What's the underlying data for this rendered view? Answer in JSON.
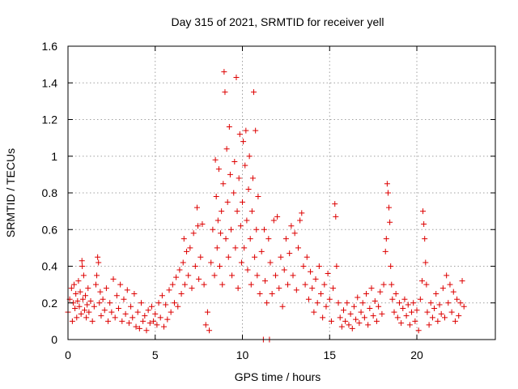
{
  "chart_data": {
    "type": "scatter",
    "title": "Day 315 of 2021, SRMTID for receiver yell",
    "xlabel": "GPS time / hours",
    "ylabel": "SRMTID / TECUs",
    "xlim": [
      0,
      24.5
    ],
    "ylim": [
      0,
      1.6
    ],
    "xticks": [
      0,
      5,
      10,
      15,
      20
    ],
    "xtick_labels": [
      "0",
      "5",
      "10",
      "15",
      "20"
    ],
    "yticks": [
      0,
      0.2,
      0.4,
      0.6,
      0.8,
      1.0,
      1.2,
      1.4,
      1.6
    ],
    "ytick_labels": [
      "0",
      "0.2",
      "0.4",
      "0.6",
      "0.8",
      "1",
      "1.2",
      "1.4",
      "1.6"
    ],
    "grid": true,
    "marker": "+",
    "color": "#dd0000",
    "series": [
      {
        "name": "SRMTID",
        "points": [
          [
            0.0,
            0.15
          ],
          [
            0.1,
            0.22
          ],
          [
            0.2,
            0.28
          ],
          [
            0.25,
            0.1
          ],
          [
            0.3,
            0.2
          ],
          [
            0.35,
            0.3
          ],
          [
            0.4,
            0.17
          ],
          [
            0.45,
            0.25
          ],
          [
            0.5,
            0.12
          ],
          [
            0.55,
            0.21
          ],
          [
            0.6,
            0.32
          ],
          [
            0.65,
            0.18
          ],
          [
            0.7,
            0.26
          ],
          [
            0.75,
            0.14
          ],
          [
            0.8,
            0.43
          ],
          [
            0.82,
            0.4
          ],
          [
            0.85,
            0.22
          ],
          [
            0.9,
            0.35
          ],
          [
            0.95,
            0.16
          ],
          [
            1.0,
            0.24
          ],
          [
            1.05,
            0.12
          ],
          [
            1.1,
            0.19
          ],
          [
            1.15,
            0.28
          ],
          [
            1.2,
            0.15
          ],
          [
            1.3,
            0.21
          ],
          [
            1.4,
            0.1
          ],
          [
            1.5,
            0.18
          ],
          [
            1.6,
            0.3
          ],
          [
            1.65,
            0.35
          ],
          [
            1.7,
            0.45
          ],
          [
            1.75,
            0.42
          ],
          [
            1.8,
            0.2
          ],
          [
            1.85,
            0.26
          ],
          [
            1.9,
            0.13
          ],
          [
            2.0,
            0.22
          ],
          [
            2.1,
            0.16
          ],
          [
            2.2,
            0.28
          ],
          [
            2.3,
            0.1
          ],
          [
            2.4,
            0.2
          ],
          [
            2.5,
            0.15
          ],
          [
            2.6,
            0.33
          ],
          [
            2.7,
            0.12
          ],
          [
            2.8,
            0.24
          ],
          [
            2.9,
            0.17
          ],
          [
            3.0,
            0.3
          ],
          [
            3.1,
            0.1
          ],
          [
            3.2,
            0.22
          ],
          [
            3.3,
            0.14
          ],
          [
            3.4,
            0.27
          ],
          [
            3.5,
            0.09
          ],
          [
            3.6,
            0.18
          ],
          [
            3.7,
            0.12
          ],
          [
            3.8,
            0.25
          ],
          [
            3.9,
            0.07
          ],
          [
            4.0,
            0.15
          ],
          [
            4.1,
            0.06
          ],
          [
            4.2,
            0.2
          ],
          [
            4.3,
            0.1
          ],
          [
            4.4,
            0.13
          ],
          [
            4.5,
            0.05
          ],
          [
            4.6,
            0.16
          ],
          [
            4.7,
            0.09
          ],
          [
            4.8,
            0.18
          ],
          [
            4.9,
            0.1
          ],
          [
            5.0,
            0.14
          ],
          [
            5.1,
            0.08
          ],
          [
            5.2,
            0.2
          ],
          [
            5.3,
            0.12
          ],
          [
            5.4,
            0.24
          ],
          [
            5.5,
            0.07
          ],
          [
            5.6,
            0.19
          ],
          [
            5.7,
            0.11
          ],
          [
            5.8,
            0.27
          ],
          [
            5.9,
            0.15
          ],
          [
            6.0,
            0.3
          ],
          [
            6.1,
            0.2
          ],
          [
            6.2,
            0.34
          ],
          [
            6.3,
            0.18
          ],
          [
            6.4,
            0.38
          ],
          [
            6.5,
            0.25
          ],
          [
            6.6,
            0.42
          ],
          [
            6.65,
            0.55
          ],
          [
            6.7,
            0.3
          ],
          [
            6.8,
            0.48
          ],
          [
            6.9,
            0.35
          ],
          [
            7.0,
            0.5
          ],
          [
            7.1,
            0.28
          ],
          [
            7.2,
            0.58
          ],
          [
            7.3,
            0.4
          ],
          [
            7.4,
            0.72
          ],
          [
            7.45,
            0.62
          ],
          [
            7.5,
            0.33
          ],
          [
            7.6,
            0.45
          ],
          [
            7.7,
            0.63
          ],
          [
            7.8,
            0.3
          ],
          [
            7.9,
            0.08
          ],
          [
            8.0,
            0.15
          ],
          [
            8.1,
            0.05
          ],
          [
            8.2,
            0.42
          ],
          [
            8.3,
            0.6
          ],
          [
            8.4,
            0.35
          ],
          [
            8.45,
            0.98
          ],
          [
            8.5,
            0.78
          ],
          [
            8.55,
            0.5
          ],
          [
            8.6,
            0.65
          ],
          [
            8.65,
            0.93
          ],
          [
            8.7,
            0.4
          ],
          [
            8.75,
            0.58
          ],
          [
            8.8,
            0.7
          ],
          [
            8.85,
            0.3
          ],
          [
            8.9,
            0.85
          ],
          [
            8.95,
            1.46
          ],
          [
            9.0,
            1.35
          ],
          [
            9.05,
            0.55
          ],
          [
            9.1,
            1.04
          ],
          [
            9.15,
            0.75
          ],
          [
            9.2,
            0.45
          ],
          [
            9.25,
            1.16
          ],
          [
            9.3,
            0.9
          ],
          [
            9.35,
            0.6
          ],
          [
            9.4,
            0.35
          ],
          [
            9.5,
            0.8
          ],
          [
            9.55,
            0.97
          ],
          [
            9.6,
            0.5
          ],
          [
            9.65,
            1.43
          ],
          [
            9.7,
            0.7
          ],
          [
            9.75,
            0.28
          ],
          [
            9.8,
            0.88
          ],
          [
            9.85,
            1.12
          ],
          [
            9.9,
            0.62
          ],
          [
            9.95,
            0.42
          ],
          [
            10.0,
            0.75
          ],
          [
            10.05,
            1.08
          ],
          [
            10.1,
            0.5
          ],
          [
            10.15,
            0.95
          ],
          [
            10.2,
            1.14
          ],
          [
            10.25,
            0.65
          ],
          [
            10.3,
            0.38
          ],
          [
            10.35,
            0.82
          ],
          [
            10.4,
            1.0
          ],
          [
            10.45,
            0.55
          ],
          [
            10.5,
            0.3
          ],
          [
            10.55,
            0.7
          ],
          [
            10.6,
            0.88
          ],
          [
            10.65,
            1.35
          ],
          [
            10.7,
            0.45
          ],
          [
            10.75,
            1.14
          ],
          [
            10.8,
            0.6
          ],
          [
            10.85,
            0.35
          ],
          [
            10.9,
            0.78
          ],
          [
            11.0,
            0.25
          ],
          [
            11.1,
            0.48
          ],
          [
            11.2,
            0.0
          ],
          [
            11.25,
            0.6
          ],
          [
            11.3,
            0.32
          ],
          [
            11.4,
            0.2
          ],
          [
            11.5,
            0.55
          ],
          [
            11.55,
            0.0
          ],
          [
            11.6,
            0.42
          ],
          [
            11.7,
            0.25
          ],
          [
            11.8,
            0.65
          ],
          [
            11.9,
            0.35
          ],
          [
            12.0,
            0.67
          ],
          [
            12.1,
            0.28
          ],
          [
            12.2,
            0.45
          ],
          [
            12.3,
            0.18
          ],
          [
            12.4,
            0.38
          ],
          [
            12.5,
            0.55
          ],
          [
            12.6,
            0.3
          ],
          [
            12.7,
            0.47
          ],
          [
            12.8,
            0.62
          ],
          [
            12.9,
            0.35
          ],
          [
            13.0,
            0.58
          ],
          [
            13.1,
            0.27
          ],
          [
            13.2,
            0.5
          ],
          [
            13.3,
            0.65
          ],
          [
            13.4,
            0.69
          ],
          [
            13.5,
            0.4
          ],
          [
            13.6,
            0.3
          ],
          [
            13.7,
            0.45
          ],
          [
            13.8,
            0.22
          ],
          [
            13.9,
            0.37
          ],
          [
            14.0,
            0.28
          ],
          [
            14.1,
            0.15
          ],
          [
            14.2,
            0.33
          ],
          [
            14.3,
            0.2
          ],
          [
            14.4,
            0.4
          ],
          [
            14.5,
            0.25
          ],
          [
            14.6,
            0.12
          ],
          [
            14.7,
            0.3
          ],
          [
            14.8,
            0.18
          ],
          [
            14.9,
            0.36
          ],
          [
            15.0,
            0.22
          ],
          [
            15.1,
            0.1
          ],
          [
            15.2,
            0.28
          ],
          [
            15.3,
            0.74
          ],
          [
            15.35,
            0.67
          ],
          [
            15.4,
            0.4
          ],
          [
            15.5,
            0.2
          ],
          [
            15.6,
            0.12
          ],
          [
            15.7,
            0.07
          ],
          [
            15.8,
            0.16
          ],
          [
            15.9,
            0.1
          ],
          [
            16.0,
            0.2
          ],
          [
            16.1,
            0.08
          ],
          [
            16.2,
            0.14
          ],
          [
            16.3,
            0.06
          ],
          [
            16.4,
            0.18
          ],
          [
            16.5,
            0.11
          ],
          [
            16.6,
            0.23
          ],
          [
            16.7,
            0.09
          ],
          [
            16.8,
            0.15
          ],
          [
            16.9,
            0.2
          ],
          [
            17.0,
            0.12
          ],
          [
            17.1,
            0.25
          ],
          [
            17.2,
            0.08
          ],
          [
            17.3,
            0.17
          ],
          [
            17.4,
            0.28
          ],
          [
            17.5,
            0.13
          ],
          [
            17.6,
            0.21
          ],
          [
            17.7,
            0.1
          ],
          [
            17.8,
            0.18
          ],
          [
            17.9,
            0.26
          ],
          [
            18.0,
            0.14
          ],
          [
            18.1,
            0.3
          ],
          [
            18.2,
            0.48
          ],
          [
            18.25,
            0.55
          ],
          [
            18.3,
            0.85
          ],
          [
            18.35,
            0.8
          ],
          [
            18.4,
            0.72
          ],
          [
            18.45,
            0.64
          ],
          [
            18.5,
            0.4
          ],
          [
            18.55,
            0.3
          ],
          [
            18.6,
            0.22
          ],
          [
            18.7,
            0.15
          ],
          [
            18.8,
            0.25
          ],
          [
            18.9,
            0.12
          ],
          [
            19.0,
            0.2
          ],
          [
            19.1,
            0.09
          ],
          [
            19.2,
            0.17
          ],
          [
            19.3,
            0.22
          ],
          [
            19.4,
            0.13
          ],
          [
            19.5,
            0.19
          ],
          [
            19.6,
            0.08
          ],
          [
            19.7,
            0.15
          ],
          [
            19.8,
            0.2
          ],
          [
            19.9,
            0.1
          ],
          [
            20.0,
            0.16
          ],
          [
            20.1,
            0.05
          ],
          [
            20.2,
            0.22
          ],
          [
            20.3,
            0.32
          ],
          [
            20.35,
            0.7
          ],
          [
            20.4,
            0.63
          ],
          [
            20.45,
            0.55
          ],
          [
            20.5,
            0.42
          ],
          [
            20.55,
            0.3
          ],
          [
            20.6,
            0.15
          ],
          [
            20.7,
            0.08
          ],
          [
            20.8,
            0.2
          ],
          [
            20.9,
            0.12
          ],
          [
            21.0,
            0.17
          ],
          [
            21.1,
            0.25
          ],
          [
            21.2,
            0.1
          ],
          [
            21.3,
            0.19
          ],
          [
            21.4,
            0.14
          ],
          [
            21.5,
            0.28
          ],
          [
            21.6,
            0.12
          ],
          [
            21.7,
            0.35
          ],
          [
            21.8,
            0.2
          ],
          [
            21.9,
            0.3
          ],
          [
            22.0,
            0.15
          ],
          [
            22.1,
            0.26
          ],
          [
            22.2,
            0.1
          ],
          [
            22.3,
            0.22
          ],
          [
            22.4,
            0.13
          ],
          [
            22.5,
            0.2
          ],
          [
            22.6,
            0.32
          ],
          [
            22.7,
            0.18
          ]
        ]
      }
    ]
  }
}
